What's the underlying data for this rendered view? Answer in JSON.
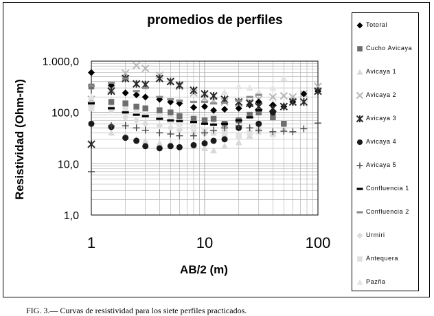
{
  "caption": "FIG. 3.— Curvas de resistividad para los siete perfiles practicados.",
  "chart_data": {
    "type": "scatter",
    "title": "promedios de perfiles",
    "xlabel": "AB/2  (m)",
    "ylabel": "Resistividad (Ohm-m)",
    "x_scale": "log",
    "y_scale": "log",
    "xlim": [
      1,
      100
    ],
    "ylim": [
      1,
      1000
    ],
    "x_ticks": [
      "1",
      "10",
      "100"
    ],
    "y_ticks": [
      "1,0",
      "10,0",
      "100,0",
      "1.000,0"
    ],
    "grid": true,
    "legend_position": "right",
    "series": [
      {
        "name": "Totoral",
        "marker": "diamond",
        "color": "#000000",
        "x": [
          1,
          1.5,
          2,
          2.5,
          3,
          4,
          5,
          6,
          8,
          10,
          12,
          15,
          20,
          25,
          30,
          40,
          50,
          60,
          75,
          100
        ],
        "y": [
          600,
          340,
          240,
          220,
          200,
          180,
          160,
          150,
          125,
          130,
          110,
          115,
          120,
          140,
          160,
          140,
          130,
          160,
          230,
          260
        ]
      },
      {
        "name": "Cucho Avicaya",
        "marker": "square",
        "color": "#6e6e6e",
        "x": [
          1,
          1.5,
          2,
          2.5,
          3,
          4,
          5,
          6,
          8,
          10,
          12,
          15,
          20,
          25,
          30,
          40,
          50
        ],
        "y": [
          320,
          160,
          150,
          130,
          120,
          110,
          100,
          85,
          75,
          70,
          75,
          60,
          70,
          90,
          100,
          80,
          60
        ]
      },
      {
        "name": "Avicaya 1",
        "marker": "triangle",
        "color": "#d8d8d8",
        "x": [
          1,
          1.5,
          2,
          2.5,
          3,
          4,
          5,
          6,
          8,
          10,
          12,
          15,
          20,
          25,
          30,
          40,
          50
        ],
        "y": [
          150,
          40,
          35,
          30,
          28,
          25,
          25,
          22,
          22,
          20,
          18,
          22,
          26,
          35,
          50,
          40,
          48
        ]
      },
      {
        "name": "Avicaya 2",
        "marker": "x",
        "color": "#b8b8b8",
        "x": [
          1,
          1.5,
          2,
          2.5,
          3,
          4,
          5,
          6,
          8,
          10,
          12,
          15,
          20,
          25,
          30,
          40,
          50,
          60,
          75,
          100
        ],
        "y": [
          180,
          280,
          580,
          820,
          720,
          530,
          400,
          320,
          240,
          190,
          170,
          160,
          150,
          160,
          180,
          200,
          210,
          200,
          230,
          320
        ]
      },
      {
        "name": "Avicaya 3",
        "marker": "star",
        "color": "#2a2a2a",
        "x": [
          1,
          1.5,
          2,
          2.5,
          3,
          4,
          5,
          6,
          8,
          10,
          12,
          15,
          20,
          25,
          30,
          40,
          50,
          60,
          75,
          100
        ],
        "y": [
          24,
          260,
          460,
          360,
          350,
          460,
          400,
          340,
          270,
          230,
          210,
          180,
          160,
          150,
          130,
          120,
          130,
          160,
          160,
          260
        ]
      },
      {
        "name": "Avicaya 4",
        "marker": "circle",
        "color": "#1a1a1a",
        "x": [
          1,
          1.5,
          2,
          2.5,
          3,
          4,
          5,
          6,
          8,
          10,
          12,
          15,
          20,
          30,
          40
        ],
        "y": [
          60,
          52,
          32,
          28,
          22,
          20,
          22,
          21,
          23,
          25,
          28,
          30,
          50,
          60,
          100
        ]
      },
      {
        "name": "Avicaya 5",
        "marker": "plus",
        "color": "#444444",
        "x": [
          1,
          1.5,
          2,
          2.5,
          3,
          4,
          5,
          6,
          8,
          10,
          12,
          15,
          20,
          25,
          30,
          40,
          50,
          60,
          75,
          100
        ],
        "y": [
          7,
          55,
          55,
          50,
          45,
          40,
          38,
          35,
          35,
          40,
          45,
          50,
          55,
          50,
          45,
          42,
          43,
          42,
          48,
          62
        ]
      },
      {
        "name": "Confluencia 1",
        "marker": "dash",
        "color": "#000000",
        "x": [
          1,
          1.5,
          2,
          2.5,
          3,
          4,
          5,
          6,
          8,
          10,
          12,
          15,
          20,
          25,
          30
        ],
        "y": [
          150,
          120,
          100,
          90,
          85,
          75,
          70,
          68,
          65,
          60,
          58,
          60,
          70,
          80,
          110
        ]
      },
      {
        "name": "Confluencia 2",
        "marker": "dash",
        "color": "#8c8c8c",
        "x": [
          1,
          1.5,
          2,
          2.5,
          3,
          4,
          5,
          6,
          8,
          10,
          12,
          15,
          20,
          25,
          30
        ],
        "y": [
          330,
          380,
          460,
          260,
          300,
          200,
          180,
          170,
          160,
          160,
          150,
          155,
          170,
          200,
          220
        ]
      },
      {
        "name": "Urmiri",
        "marker": "diamond",
        "color": "#dcdcdc",
        "x": [
          1,
          1.5,
          2,
          2.5,
          3,
          4,
          5,
          6,
          8,
          10,
          12,
          15,
          20,
          30
        ],
        "y": [
          130,
          110,
          80,
          70,
          60,
          55,
          50,
          45,
          40,
          38,
          40,
          45,
          50,
          55
        ]
      },
      {
        "name": "Antequera",
        "marker": "square",
        "color": "#e0e0e0",
        "x": [
          1,
          1.5,
          2,
          2.5,
          3,
          4,
          5,
          6,
          8,
          10,
          12,
          15,
          20,
          25,
          30,
          40
        ],
        "y": [
          120,
          140,
          120,
          110,
          100,
          90,
          75,
          60,
          50,
          45,
          40,
          38,
          35,
          40,
          42,
          38
        ]
      },
      {
        "name": "Pazña",
        "marker": "triangle",
        "color": "#e4e4e4",
        "x": [
          1,
          1.5,
          2,
          2.5,
          3,
          4,
          5,
          6,
          8,
          10,
          12,
          15,
          20,
          25,
          30,
          40,
          50
        ],
        "y": [
          200,
          180,
          150,
          130,
          110,
          90,
          70,
          60,
          50,
          45,
          60,
          250,
          320,
          300,
          250,
          300,
          460
        ]
      }
    ]
  }
}
